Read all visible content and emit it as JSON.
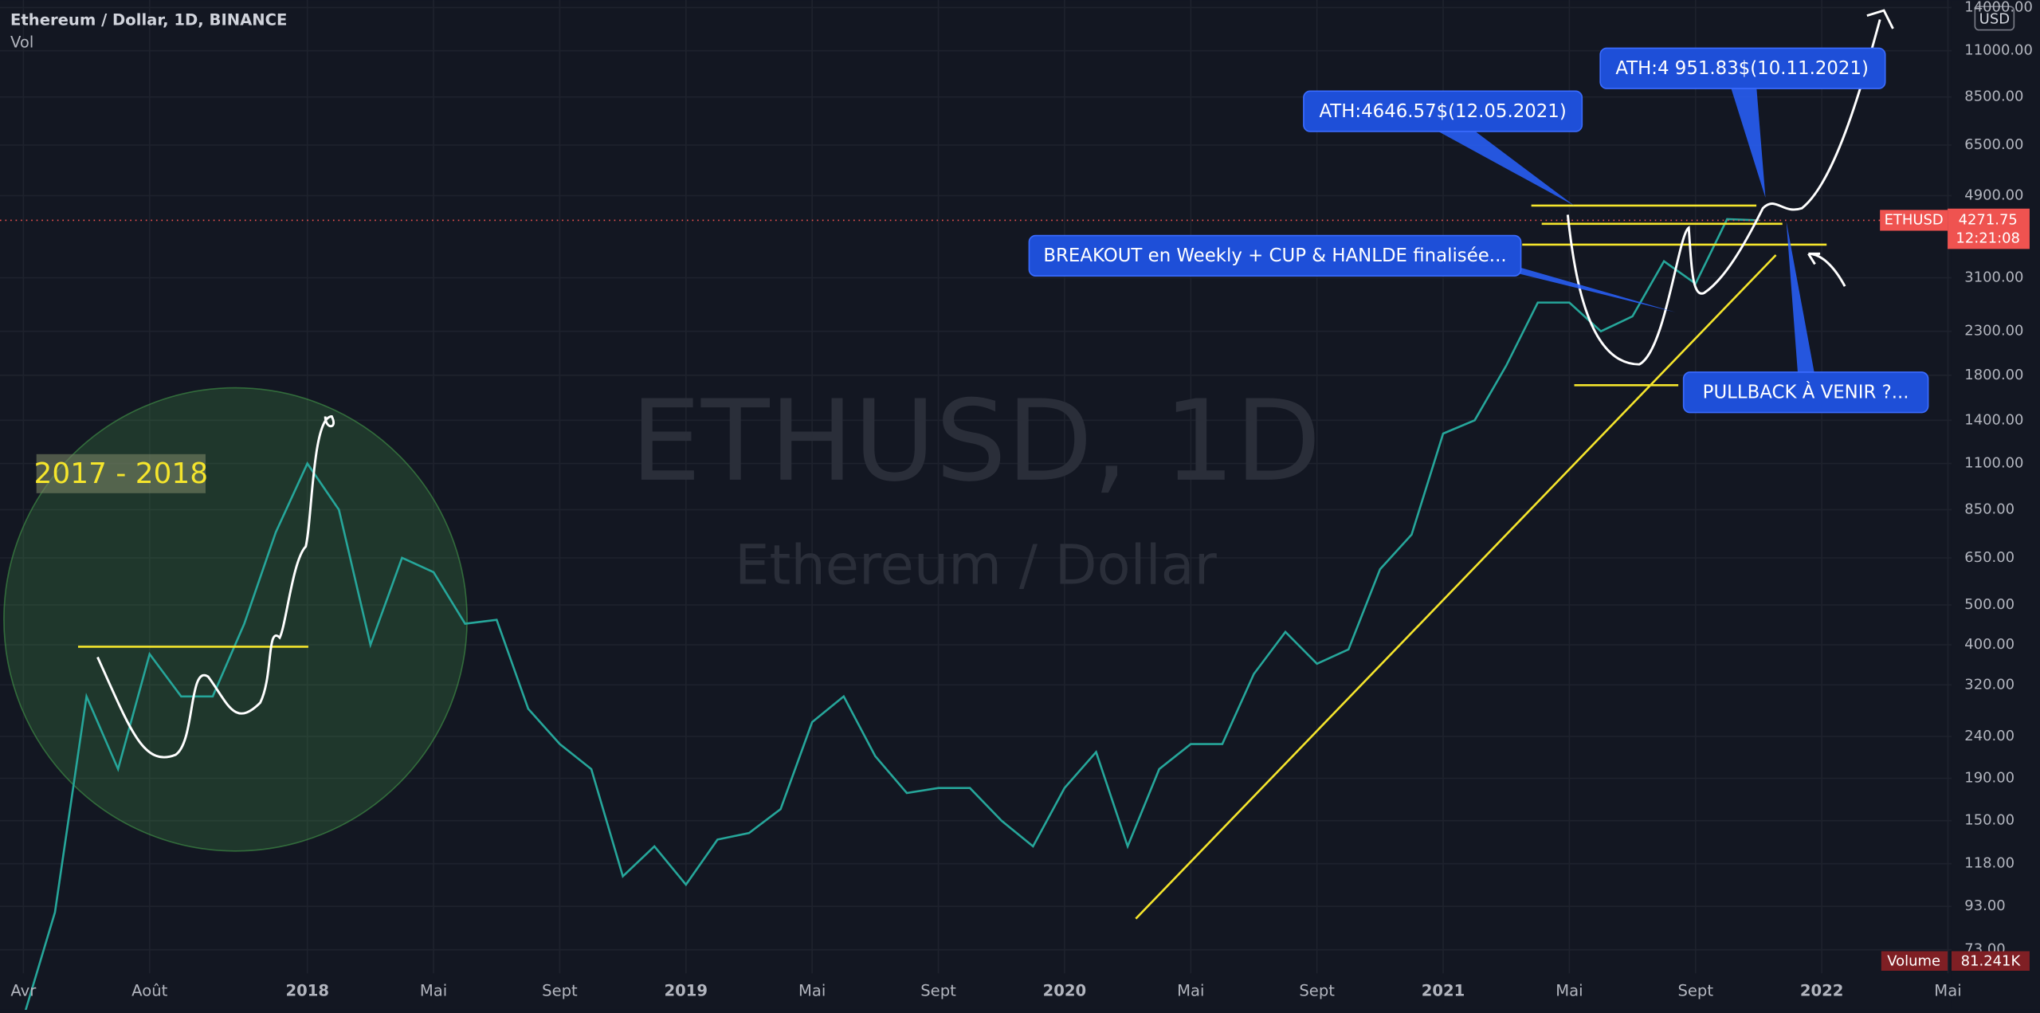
{
  "chart_data": {
    "type": "line",
    "title": "Ethereum / Dollar, 1D, BINANCE",
    "subtitle": "Vol",
    "watermark": [
      "ETHUSD, 1D",
      "Ethereum / Dollar"
    ],
    "currency": "USD",
    "log_scale": true,
    "grid": true,
    "categories": [
      "Avr",
      null,
      null,
      null,
      "Août",
      null,
      null,
      null,
      null,
      "2018",
      null,
      null,
      null,
      "Mai",
      null,
      null,
      null,
      "Sept",
      null,
      null,
      null,
      "2019",
      null,
      null,
      null,
      "Mai",
      null,
      null,
      null,
      "Sept",
      null,
      null,
      null,
      "2020",
      null,
      null,
      null,
      "Mai",
      null,
      null,
      null,
      "Sept",
      null,
      null,
      null,
      "2021",
      null,
      null,
      null,
      "Mai",
      null,
      null,
      null,
      "Sept",
      null,
      null,
      null,
      "2022",
      null,
      null,
      null,
      "Mai"
    ],
    "series": [
      {
        "name": "ETHUSD",
        "color": "#26a69a",
        "values": [
          50,
          90,
          300,
          200,
          380,
          300,
          300,
          450,
          750,
          1100,
          850,
          400,
          650,
          600,
          450,
          460,
          280,
          230,
          200,
          110,
          130,
          105,
          135,
          140,
          160,
          260,
          300,
          215,
          175,
          180,
          180,
          150,
          130,
          180,
          220,
          130,
          200,
          230,
          230,
          340,
          430,
          360,
          390,
          610,
          740,
          1300,
          1400,
          1900,
          2700,
          2700,
          2300,
          2500,
          3400,
          3000,
          4300,
          4271.75,
          null,
          null,
          null,
          null,
          null,
          null
        ]
      }
    ],
    "ylim": [
      64,
      14600
    ],
    "yticks": [
      {
        "value": 14000,
        "label": "14000.00"
      },
      {
        "value": 11000,
        "label": "11000.00"
      },
      {
        "value": 8500,
        "label": "8500.00"
      },
      {
        "value": 6500,
        "label": "6500.00"
      },
      {
        "value": 4900,
        "label": "4900.00"
      },
      {
        "value": 3100,
        "label": "3100.00"
      },
      {
        "value": 2300,
        "label": "2300.00"
      },
      {
        "value": 1800,
        "label": "1800.00"
      },
      {
        "value": 1400,
        "label": "1400.00"
      },
      {
        "value": 1100,
        "label": "1100.00"
      },
      {
        "value": 850,
        "label": "850.00"
      },
      {
        "value": 650,
        "label": "650.00"
      },
      {
        "value": 500,
        "label": "500.00"
      },
      {
        "value": 400,
        "label": "400.00"
      },
      {
        "value": 320,
        "label": "320.00"
      },
      {
        "value": 240,
        "label": "240.00"
      },
      {
        "value": 190,
        "label": "190.00"
      },
      {
        "value": 150,
        "label": "150.00"
      },
      {
        "value": 118,
        "label": "118.00"
      },
      {
        "value": 93,
        "label": "93.00"
      },
      {
        "value": 73,
        "label": "73.00"
      }
    ],
    "last_price": {
      "symbol": "ETHUSD",
      "value": 4271.75,
      "countdown": "12:21:08"
    },
    "volume": {
      "label": "Volume",
      "value_label": "81.241K"
    },
    "annotations": [
      "ATH:4646.57$(12.05.2021)",
      "ATH:4 951.83$(10.11.2021)",
      "BREAKOUT en Weekly + CUP & HANLDE finalisée...",
      "PULLBACK  À VENIR ?...",
      "2017 - 2018"
    ]
  }
}
